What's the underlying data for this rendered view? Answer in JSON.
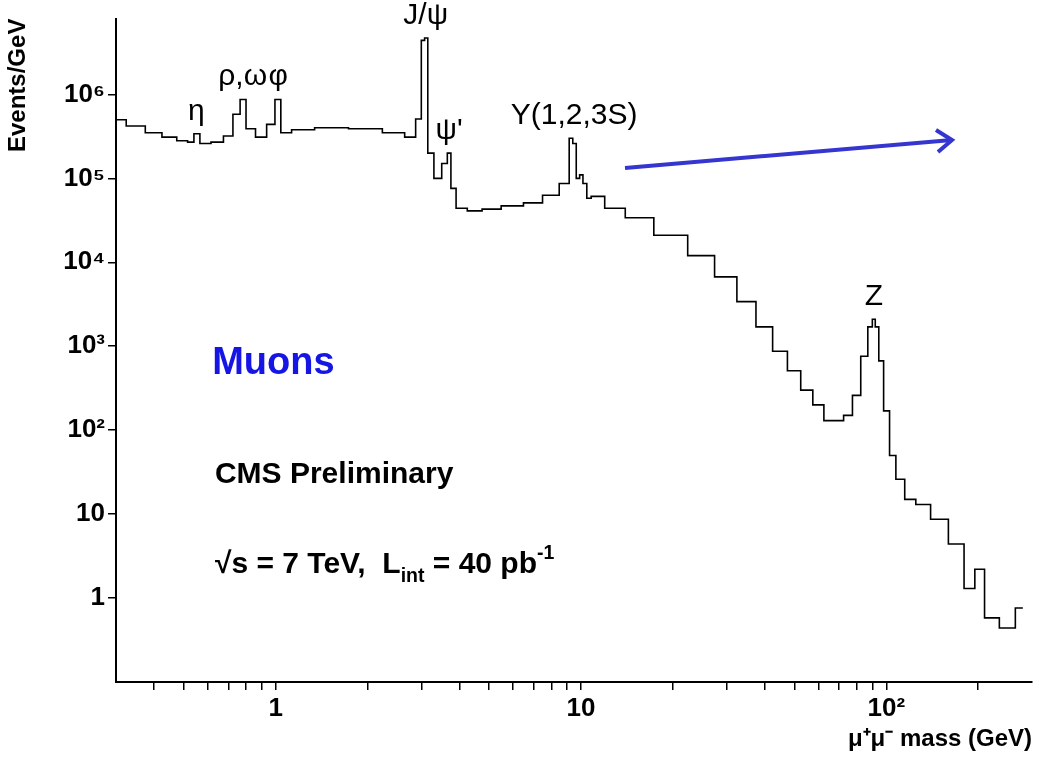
{
  "chart_data": {
    "type": "step",
    "xlabel": "μ⁺μ⁻ mass (GeV)",
    "ylabel": "Events/GeV",
    "log": "xy",
    "xlim": [
      0.3,
      300
    ],
    "ylim": [
      0.1,
      8000000
    ],
    "xticks": [
      {
        "value": 0.4,
        "label": null
      },
      {
        "value": 0.5,
        "label": null
      },
      {
        "value": 0.6,
        "label": null
      },
      {
        "value": 0.7,
        "label": null
      },
      {
        "value": 0.8,
        "label": null
      },
      {
        "value": 0.9,
        "label": null
      },
      1,
      {
        "value": 2,
        "label": null
      },
      {
        "value": 3,
        "label": null
      },
      {
        "value": 4,
        "label": null
      },
      {
        "value": 5,
        "label": null
      },
      {
        "value": 6,
        "label": null
      },
      {
        "value": 7,
        "label": null
      },
      {
        "value": 8,
        "label": null
      },
      {
        "value": 9,
        "label": null
      },
      10,
      {
        "value": 20,
        "label": null
      },
      {
        "value": 30,
        "label": null
      },
      {
        "value": 40,
        "label": null
      },
      {
        "value": 50,
        "label": null
      },
      {
        "value": 60,
        "label": null
      },
      {
        "value": 70,
        "label": null
      },
      {
        "value": 80,
        "label": null
      },
      {
        "value": 90,
        "label": null
      },
      {
        "value": 100,
        "label": "10²"
      },
      {
        "value": 200,
        "label": null
      }
    ],
    "yticks": [
      1,
      10,
      {
        "value": 100,
        "label": "10²"
      },
      {
        "value": 1000,
        "label": "10³"
      },
      {
        "value": 10000,
        "label": "10⁴"
      },
      {
        "value": 100000,
        "label": "10⁵"
      },
      {
        "value": 1000000,
        "label": "10⁶"
      }
    ],
    "series": [
      {
        "color": "#000000",
        "x": [
          0.3,
          0.35,
          0.4,
          0.45,
          0.5,
          0.53,
          0.55,
          0.58,
          0.65,
          0.7,
          0.75,
          0.78,
          0.82,
          0.9,
          0.97,
          1.02,
          1.06,
          1.2,
          1.5,
          2.0,
          2.5,
          2.8,
          2.95,
          3.05,
          3.1,
          3.2,
          3.4,
          3.6,
          3.7,
          3.8,
          4.0,
          4.5,
          5,
          6,
          7,
          8,
          9,
          9.3,
          9.5,
          9.8,
          10,
          10.3,
          10.6,
          11,
          13,
          15,
          20,
          25,
          30,
          35,
          40,
          45,
          50,
          55,
          60,
          65,
          70,
          75,
          80,
          85,
          89,
          91,
          93,
          96,
          100,
          105,
          110,
          120,
          130,
          150,
          170,
          190,
          200,
          220,
          250,
          280
        ],
        "values": [
          500000,
          420000,
          350000,
          310000,
          280000,
          270000,
          340000,
          260000,
          270000,
          320000,
          580000,
          870000,
          390000,
          310000,
          440000,
          870000,
          350000,
          380000,
          400000,
          390000,
          350000,
          310000,
          510000,
          4400000,
          4700000,
          200000,
          100000,
          150000,
          200000,
          76000,
          44000,
          41000,
          43000,
          47000,
          51000,
          63000,
          87000,
          300000,
          260000,
          100000,
          110000,
          87000,
          58000,
          61000,
          44000,
          34000,
          21000,
          12000,
          6700,
          3400,
          1700,
          870,
          510,
          300,
          200,
          130,
          130,
          150,
          260,
          760,
          1700,
          2100,
          1700,
          670,
          170,
          50,
          26,
          15,
          13,
          8.7,
          4.4,
          1.3,
          2.2,
          0.58,
          0.44,
          0.76
        ]
      }
    ],
    "annotations": [
      {
        "text": "η",
        "x": 0.55,
        "y": 340000
      },
      {
        "text": "ρ,ω",
        "x": 0.78,
        "y": 870000
      },
      {
        "text": "φ",
        "x": 1.02,
        "y": 870000
      },
      {
        "text": "J/ψ",
        "x": 3.1,
        "y": 4700000
      },
      {
        "text": "ψ'",
        "x": 3.7,
        "y": 200000
      },
      {
        "text": "Υ(1,2,3S)",
        "x": 9.5,
        "y": 300000
      },
      {
        "text": "Z",
        "x": 91,
        "y": 2100
      },
      "Muons",
      "CMS Preliminary",
      "√s = 7 TeV,  L$_{int}$ = 40 pb$^{-1}$"
    ]
  }
}
